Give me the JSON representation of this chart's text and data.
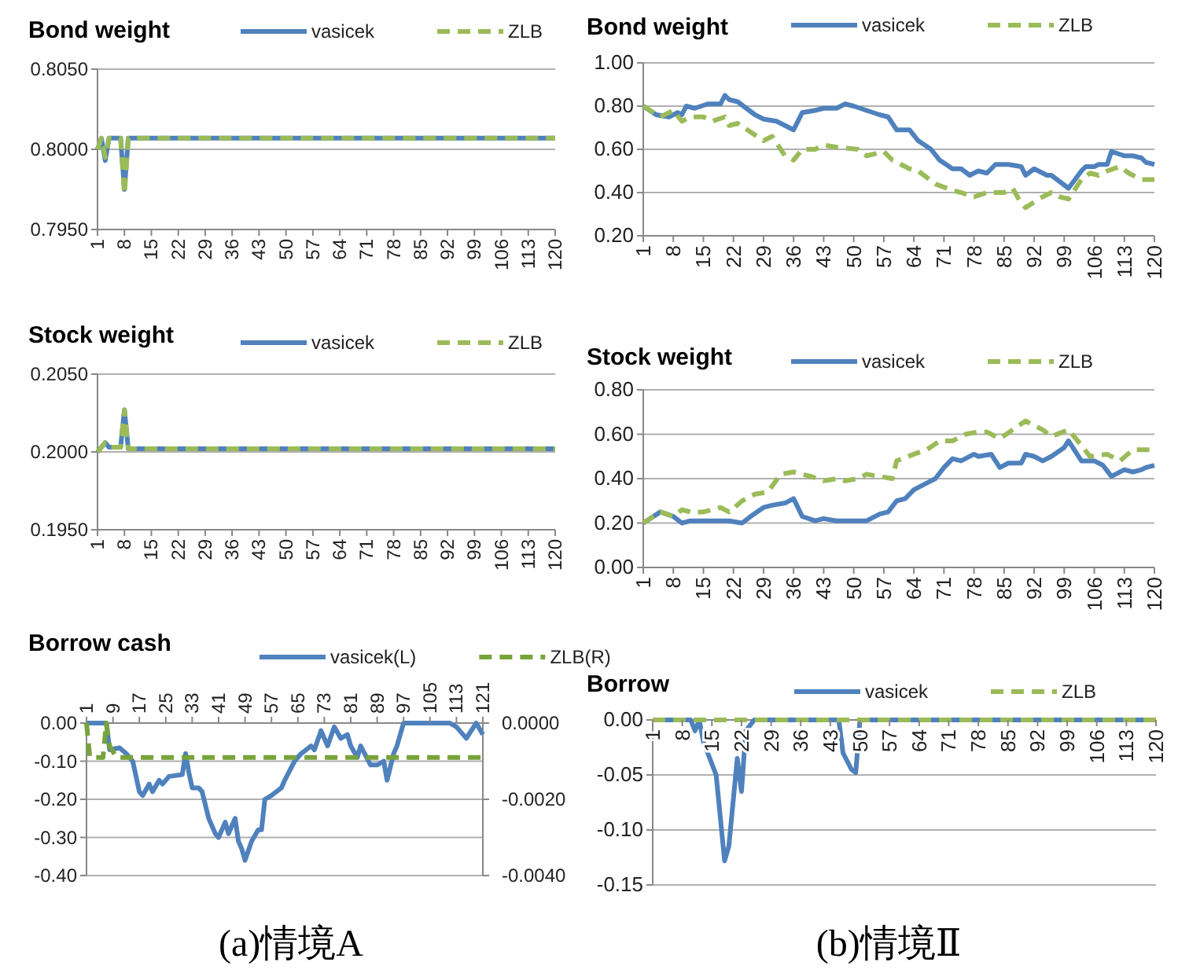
{
  "chart_data": [
    {
      "type": "line",
      "title": "Bond weight",
      "legend": "top",
      "grid": "y",
      "xlim": [
        1,
        120
      ],
      "xticks": [
        1,
        8,
        15,
        22,
        29,
        36,
        43,
        50,
        57,
        64,
        71,
        78,
        85,
        92,
        99,
        106,
        113,
        120
      ],
      "ylim": [
        0.795,
        0.805
      ],
      "yticks": [
        {
          "value": 0.795,
          "label": "0.7950"
        },
        {
          "value": 0.8,
          "label": "0.8000"
        },
        {
          "value": 0.805,
          "label": "0.8050"
        }
      ],
      "series": [
        {
          "name": "vasicek",
          "color": "#4f81bd",
          "line_style": "solid",
          "x": [
            1,
            2,
            3,
            4,
            7,
            8,
            9,
            120
          ],
          "values": [
            0.8,
            0.8007,
            0.7993,
            0.8007,
            0.8007,
            0.7975,
            0.8007,
            0.8007
          ]
        },
        {
          "name": "ZLB",
          "color": "#9bbb59",
          "line_style": "dashed",
          "x": [
            1,
            2,
            3,
            4,
            7,
            8,
            9,
            120
          ],
          "values": [
            0.8,
            0.8007,
            0.7995,
            0.8007,
            0.8007,
            0.7972,
            0.8007,
            0.8007
          ]
        }
      ]
    },
    {
      "type": "line",
      "title": "Stock weight",
      "legend": "top",
      "grid": "y",
      "xlim": [
        1,
        120
      ],
      "xticks": [
        1,
        8,
        15,
        22,
        29,
        36,
        43,
        50,
        57,
        64,
        71,
        78,
        85,
        92,
        99,
        106,
        113,
        120
      ],
      "ylim": [
        0.195,
        0.205
      ],
      "yticks": [
        {
          "value": 0.195,
          "label": "0.1950"
        },
        {
          "value": 0.2,
          "label": "0.2000"
        },
        {
          "value": 0.205,
          "label": "0.2050"
        }
      ],
      "series": [
        {
          "name": "vasicek",
          "color": "#4f81bd",
          "line_style": "solid",
          "x": [
            1,
            3,
            4,
            7,
            8,
            9,
            120
          ],
          "values": [
            0.2,
            0.2006,
            0.2003,
            0.2003,
            0.2027,
            0.2002,
            0.2002
          ]
        },
        {
          "name": "ZLB",
          "color": "#9bbb59",
          "line_style": "dashed",
          "x": [
            1,
            3,
            4,
            7,
            8,
            9,
            120
          ],
          "values": [
            0.2,
            0.2006,
            0.2003,
            0.2003,
            0.2027,
            0.2002,
            0.2002
          ]
        }
      ]
    },
    {
      "type": "line",
      "title": "Borrow cash",
      "legend": "top",
      "grid": "y",
      "xlim": [
        1,
        121
      ],
      "xticks": [
        1,
        9,
        17,
        25,
        33,
        41,
        49,
        57,
        65,
        73,
        81,
        89,
        97,
        105,
        113,
        121
      ],
      "ylim": [
        -0.4,
        0
      ],
      "yticks": [
        {
          "value": -0.4,
          "label": "-0.40"
        },
        {
          "value": -0.3,
          "label": "-0.30"
        },
        {
          "value": -0.2,
          "label": "-0.20"
        },
        {
          "value": -0.1,
          "label": "-0.10"
        },
        {
          "value": 0,
          "label": "0.00"
        }
      ],
      "y2lim": [
        -0.004,
        0
      ],
      "y2ticks": [
        {
          "value": -0.004,
          "label": "-0.0040"
        },
        {
          "value": -0.002,
          "label": "-0.0020"
        },
        {
          "value": 0,
          "label": "0.0000"
        }
      ],
      "annotations": [
        "(a)情境A"
      ],
      "series": [
        {
          "name": "vasicek(L)",
          "color": "#4f81bd",
          "line_style": "solid",
          "x": [
            1,
            7,
            8,
            11,
            13,
            15,
            17,
            18,
            20,
            21,
            23,
            24,
            26,
            30,
            31,
            32,
            33,
            35,
            36,
            38,
            40,
            41,
            43,
            44,
            46,
            47,
            48,
            49,
            51,
            53,
            54,
            55,
            57,
            60,
            61,
            64,
            66,
            69,
            70,
            72,
            74,
            76,
            78,
            80,
            81,
            83,
            84,
            87,
            89,
            91,
            92,
            94,
            95,
            97,
            111,
            113,
            116,
            119,
            121
          ],
          "values": [
            0,
            0,
            -0.07,
            -0.065,
            -0.08,
            -0.1,
            -0.18,
            -0.19,
            -0.16,
            -0.18,
            -0.15,
            -0.16,
            -0.14,
            -0.135,
            -0.08,
            -0.13,
            -0.17,
            -0.17,
            -0.18,
            -0.25,
            -0.29,
            -0.3,
            -0.26,
            -0.29,
            -0.25,
            -0.31,
            -0.33,
            -0.36,
            -0.31,
            -0.28,
            -0.28,
            -0.2,
            -0.19,
            -0.17,
            -0.15,
            -0.1,
            -0.08,
            -0.06,
            -0.07,
            -0.02,
            -0.06,
            -0.01,
            -0.04,
            -0.03,
            -0.06,
            -0.09,
            -0.06,
            -0.11,
            -0.11,
            -0.1,
            -0.15,
            -0.08,
            -0.06,
            0,
            0,
            -0.01,
            -0.04,
            0,
            -0.03
          ]
        },
        {
          "name": "ZLB(R)",
          "color": "#77a33a",
          "line_style": "dashed",
          "axis": "y2",
          "x": [
            1,
            2,
            6,
            7,
            8,
            10,
            121
          ],
          "values": [
            0,
            -0.0009,
            -0.0009,
            0,
            -0.0006,
            -0.0009,
            -0.0009
          ]
        }
      ]
    },
    {
      "type": "line",
      "title": "Bond weight",
      "legend": "top",
      "grid": "y",
      "xlim": [
        1,
        120
      ],
      "xticks": [
        1,
        8,
        15,
        22,
        29,
        36,
        43,
        50,
        57,
        64,
        71,
        78,
        85,
        92,
        99,
        106,
        113,
        120
      ],
      "ylim": [
        0.2,
        1
      ],
      "yticks": [
        {
          "value": 0.2,
          "label": "0.20"
        },
        {
          "value": 0.4,
          "label": "0.40"
        },
        {
          "value": 0.6,
          "label": "0.60"
        },
        {
          "value": 0.8,
          "label": "0.80"
        },
        {
          "value": 1,
          "label": "1.00"
        }
      ],
      "series": [
        {
          "name": "vasicek",
          "color": "#4f81bd",
          "line_style": "solid",
          "x": [
            1,
            4,
            7,
            9,
            10,
            11,
            13,
            16,
            19,
            20,
            21,
            23,
            25,
            27,
            29,
            32,
            34,
            36,
            38,
            41,
            43,
            46,
            48,
            50,
            53,
            56,
            58,
            60,
            63,
            65,
            68,
            70,
            73,
            75,
            77,
            79,
            81,
            83,
            86,
            89,
            90,
            92,
            93,
            95,
            96,
            100,
            103,
            104,
            106,
            107,
            109,
            110,
            113,
            115,
            117,
            118,
            120
          ],
          "values": [
            0.8,
            0.76,
            0.75,
            0.77,
            0.76,
            0.8,
            0.79,
            0.81,
            0.81,
            0.85,
            0.83,
            0.82,
            0.79,
            0.76,
            0.74,
            0.73,
            0.71,
            0.69,
            0.77,
            0.78,
            0.79,
            0.79,
            0.81,
            0.8,
            0.78,
            0.76,
            0.75,
            0.69,
            0.69,
            0.64,
            0.6,
            0.55,
            0.51,
            0.51,
            0.48,
            0.5,
            0.49,
            0.53,
            0.53,
            0.52,
            0.48,
            0.51,
            0.5,
            0.48,
            0.48,
            0.42,
            0.5,
            0.52,
            0.52,
            0.53,
            0.53,
            0.59,
            0.57,
            0.57,
            0.56,
            0.54,
            0.53
          ]
        },
        {
          "name": "ZLB",
          "color": "#9bbb59",
          "line_style": "dashed",
          "x": [
            1,
            5,
            8,
            10,
            12,
            15,
            17,
            20,
            21,
            23,
            26,
            29,
            31,
            34,
            36,
            38,
            41,
            43,
            46,
            51,
            53,
            57,
            59,
            63,
            65,
            69,
            73,
            75,
            78,
            81,
            85,
            87,
            89,
            90,
            93,
            96,
            98,
            100,
            103,
            105,
            107,
            109,
            112,
            114,
            117,
            120
          ],
          "values": [
            0.8,
            0.75,
            0.78,
            0.73,
            0.75,
            0.75,
            0.73,
            0.75,
            0.71,
            0.72,
            0.68,
            0.64,
            0.66,
            0.57,
            0.55,
            0.6,
            0.6,
            0.62,
            0.61,
            0.6,
            0.57,
            0.59,
            0.55,
            0.51,
            0.5,
            0.44,
            0.41,
            0.4,
            0.38,
            0.4,
            0.4,
            0.42,
            0.35,
            0.33,
            0.37,
            0.4,
            0.38,
            0.37,
            0.46,
            0.49,
            0.48,
            0.5,
            0.52,
            0.49,
            0.46,
            0.46
          ]
        }
      ]
    },
    {
      "type": "line",
      "title": "Stock weight",
      "legend": "top",
      "grid": "y",
      "xlim": [
        1,
        120
      ],
      "xticks": [
        1,
        8,
        15,
        22,
        29,
        36,
        43,
        50,
        57,
        64,
        71,
        78,
        85,
        92,
        99,
        106,
        113,
        120
      ],
      "ylim": [
        0,
        0.8
      ],
      "yticks": [
        {
          "value": 0,
          "label": "0.00"
        },
        {
          "value": 0.2,
          "label": "0.20"
        },
        {
          "value": 0.4,
          "label": "0.40"
        },
        {
          "value": 0.6,
          "label": "0.60"
        },
        {
          "value": 0.8,
          "label": "0.80"
        }
      ],
      "series": [
        {
          "name": "vasicek",
          "color": "#4f81bd",
          "line_style": "solid",
          "x": [
            1,
            5,
            8,
            10,
            12,
            16,
            19,
            21,
            24,
            26,
            29,
            31,
            34,
            36,
            38,
            41,
            43,
            46,
            51,
            53,
            56,
            58,
            60,
            62,
            64,
            67,
            69,
            71,
            73,
            75,
            78,
            79,
            82,
            84,
            86,
            89,
            90,
            92,
            94,
            96,
            99,
            100,
            103,
            106,
            108,
            110,
            113,
            115,
            117,
            118,
            120
          ],
          "values": [
            0.2,
            0.25,
            0.23,
            0.2,
            0.21,
            0.21,
            0.21,
            0.21,
            0.2,
            0.23,
            0.27,
            0.28,
            0.29,
            0.31,
            0.23,
            0.21,
            0.22,
            0.21,
            0.21,
            0.21,
            0.24,
            0.25,
            0.3,
            0.31,
            0.35,
            0.38,
            0.4,
            0.45,
            0.49,
            0.48,
            0.51,
            0.5,
            0.51,
            0.45,
            0.47,
            0.47,
            0.51,
            0.5,
            0.48,
            0.5,
            0.54,
            0.57,
            0.48,
            0.48,
            0.46,
            0.41,
            0.44,
            0.43,
            0.44,
            0.45,
            0.46
          ]
        },
        {
          "name": "ZLB",
          "color": "#9bbb59",
          "line_style": "dashed",
          "x": [
            1,
            5,
            8,
            10,
            12,
            15,
            19,
            21,
            24,
            27,
            30,
            33,
            36,
            40,
            43,
            46,
            48,
            51,
            53,
            56,
            59,
            60,
            64,
            67,
            70,
            73,
            76,
            79,
            81,
            84,
            87,
            90,
            92,
            94,
            96,
            100,
            103,
            105,
            109,
            112,
            115,
            120
          ],
          "values": [
            0.2,
            0.25,
            0.23,
            0.26,
            0.25,
            0.25,
            0.27,
            0.25,
            0.3,
            0.33,
            0.34,
            0.42,
            0.43,
            0.41,
            0.39,
            0.4,
            0.39,
            0.4,
            0.42,
            0.41,
            0.4,
            0.48,
            0.51,
            0.53,
            0.57,
            0.57,
            0.6,
            0.61,
            0.61,
            0.58,
            0.62,
            0.66,
            0.64,
            0.62,
            0.59,
            0.62,
            0.55,
            0.5,
            0.51,
            0.48,
            0.53,
            0.53
          ]
        }
      ]
    },
    {
      "type": "line",
      "title": "Borrow",
      "legend": "top",
      "grid": "y",
      "xlim": [
        1,
        120
      ],
      "xticks": [
        1,
        8,
        15,
        22,
        29,
        36,
        43,
        50,
        57,
        64,
        71,
        78,
        85,
        92,
        99,
        106,
        113,
        120
      ],
      "ylim": [
        -0.15,
        0
      ],
      "yticks": [
        {
          "value": -0.15,
          "label": "-0.15"
        },
        {
          "value": -0.1,
          "label": "-0.10"
        },
        {
          "value": -0.05,
          "label": "-0.05"
        },
        {
          "value": 0,
          "label": "0.00"
        }
      ],
      "annotations": [
        "(b)情境Ⅱ"
      ],
      "series": [
        {
          "name": "vasicek",
          "color": "#4f81bd",
          "line_style": "solid",
          "x": [
            1,
            10,
            11,
            12,
            13,
            16,
            18,
            19,
            21,
            22,
            23,
            25,
            45,
            46,
            48,
            49,
            50,
            120
          ],
          "values": [
            0,
            0,
            -0.01,
            0,
            -0.02,
            -0.05,
            -0.128,
            -0.115,
            -0.035,
            -0.065,
            -0.01,
            0,
            0,
            -0.03,
            -0.045,
            -0.048,
            0,
            0
          ]
        },
        {
          "name": "ZLB",
          "color": "#9bbb59",
          "line_style": "dashed",
          "x": [
            1,
            120
          ],
          "values": [
            0,
            0
          ]
        }
      ]
    }
  ]
}
